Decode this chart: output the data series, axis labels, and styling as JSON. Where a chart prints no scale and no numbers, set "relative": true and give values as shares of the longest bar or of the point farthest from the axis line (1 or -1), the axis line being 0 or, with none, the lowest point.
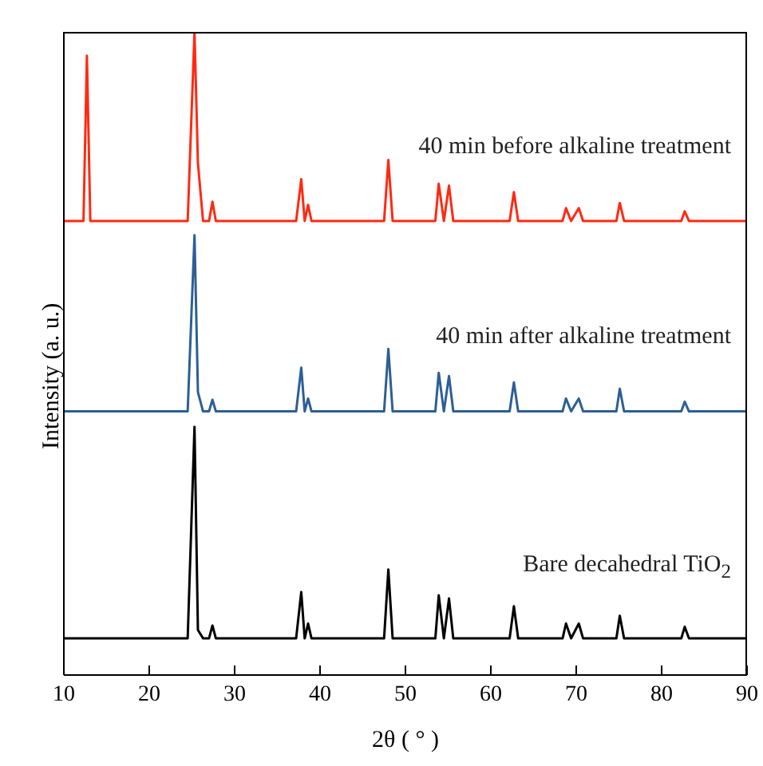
{
  "chart_data": {
    "type": "line",
    "relative": true,
    "xlabel": "2θ ( ° )",
    "ylabel": "Intensity (a. u.)",
    "xlim": [
      10,
      90
    ],
    "xticks": [
      10,
      20,
      30,
      40,
      50,
      60,
      70,
      80,
      90
    ],
    "grid": false,
    "legend": false,
    "marker": "none",
    "line_style": "solid",
    "x": [
      10,
      12.3,
      12.7,
      13.1,
      24.5,
      25.3,
      25.7,
      26.3,
      27.0,
      27.4,
      27.8,
      37.2,
      37.8,
      38.2,
      38.6,
      39.0,
      47.5,
      48.0,
      48.5,
      53.5,
      53.9,
      54.5,
      55.1,
      55.6,
      62.2,
      62.7,
      63.2,
      68.4,
      68.8,
      69.4,
      70.3,
      70.8,
      74.7,
      75.1,
      75.6,
      82.3,
      82.7,
      83.2,
      90
    ],
    "series": [
      {
        "name": "40 min before alkaline treatment",
        "color": "#ff2a12",
        "values": [
          0.706,
          0.706,
          0.963,
          0.706,
          0.706,
          1,
          0.796,
          0.706,
          0.706,
          0.736,
          0.706,
          0.706,
          0.771,
          0.706,
          0.731,
          0.706,
          0.706,
          0.801,
          0.706,
          0.706,
          0.764,
          0.706,
          0.761,
          0.706,
          0.706,
          0.751,
          0.706,
          0.706,
          0.726,
          0.706,
          0.726,
          0.706,
          0.706,
          0.734,
          0.706,
          0.706,
          0.721,
          0.706,
          0.706
        ]
      },
      {
        "name": "40 min after alkaline treatment",
        "color": "#2d5f95",
        "values": [
          0.41,
          0.41,
          0.41,
          0.41,
          0.41,
          0.684,
          0.44,
          0.41,
          0.41,
          0.428,
          0.41,
          0.41,
          0.478,
          0.41,
          0.43,
          0.41,
          0.41,
          0.507,
          0.41,
          0.41,
          0.47,
          0.41,
          0.465,
          0.41,
          0.41,
          0.455,
          0.41,
          0.41,
          0.43,
          0.41,
          0.43,
          0.41,
          0.41,
          0.445,
          0.41,
          0.41,
          0.425,
          0.41,
          0.41
        ]
      },
      {
        "name": "Bare decahedral TiO$_{2}$",
        "color": "#000000",
        "values": [
          0.057,
          0.057,
          0.057,
          0.057,
          0.057,
          0.386,
          0.07,
          0.057,
          0.057,
          0.077,
          0.057,
          0.057,
          0.129,
          0.057,
          0.08,
          0.057,
          0.057,
          0.164,
          0.057,
          0.057,
          0.124,
          0.057,
          0.119,
          0.057,
          0.057,
          0.107,
          0.057,
          0.057,
          0.08,
          0.057,
          0.08,
          0.057,
          0.057,
          0.092,
          0.057,
          0.057,
          0.075,
          0.057,
          0.057
        ]
      }
    ]
  }
}
